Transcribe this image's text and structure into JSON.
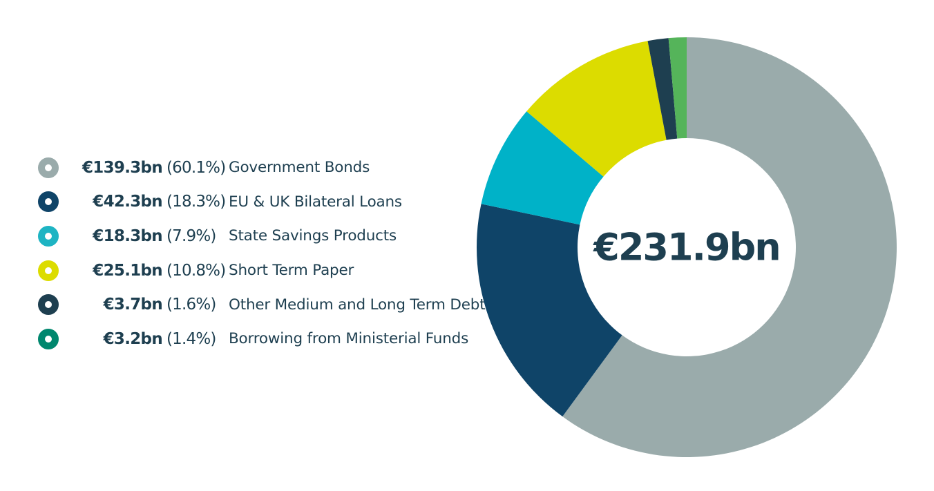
{
  "chart_data": {
    "type": "donut",
    "center_label": "€231.9bn",
    "series": [
      {
        "amount": "€139.3bn",
        "percent": "(60.1%)",
        "category": "Government Bonds",
        "value": 139.3,
        "share": 60.1,
        "color": "#9aabab"
      },
      {
        "amount": "€42.3bn",
        "percent": "(18.3%)",
        "category": "EU & UK Bilateral Loans",
        "value": 42.3,
        "share": 18.3,
        "color": "#0f4468"
      },
      {
        "amount": "€18.3bn",
        "percent": "(7.9%)",
        "category": "State Savings Products",
        "value": 18.3,
        "share": 7.9,
        "color": "#00b2c8"
      },
      {
        "amount": "€25.1bn",
        "percent": "(10.8%)",
        "category": "Short Term Paper",
        "value": 25.1,
        "share": 10.8,
        "color": "#dcdc00"
      },
      {
        "amount": "€3.7bn",
        "percent": "(1.6%)",
        "category": "Other Medium and Long Term Debt",
        "value": 3.7,
        "share": 1.6,
        "color": "#1e3f50"
      },
      {
        "amount": "€3.2bn",
        "percent": "(1.4%)",
        "category": "Borrowing from Ministerial Funds",
        "value": 3.2,
        "share": 1.4,
        "color": "#55b45a"
      }
    ],
    "legend_marker_colors": [
      "#9aabab",
      "#0f4468",
      "#1eb4c3",
      "#dcdc00",
      "#1e3f50",
      "#00876e"
    ],
    "legend_placement": "left"
  }
}
